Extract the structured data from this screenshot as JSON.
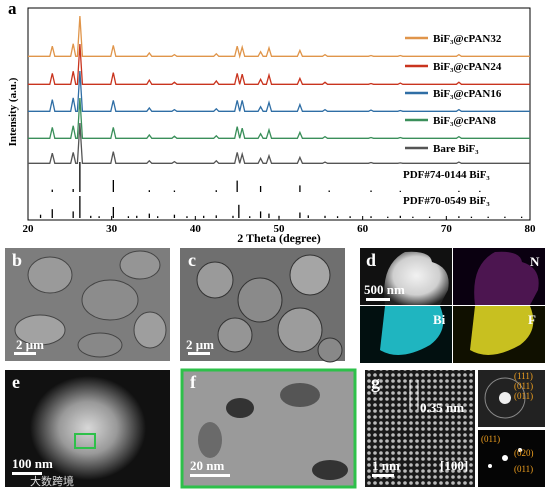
{
  "chart_data": {
    "type": "line",
    "panel_label": "a",
    "xlabel": "2 Theta (degree)",
    "ylabel": "Intensity (a.u.)",
    "xlim": [
      20,
      80
    ],
    "xticks": [
      20,
      30,
      40,
      50,
      60,
      70,
      80
    ],
    "x": [
      20,
      22.6,
      22.9,
      23.2,
      25.1,
      25.4,
      25.7,
      25.9,
      26.2,
      26.5,
      29.9,
      30.2,
      30.5,
      34.2,
      34.5,
      34.8,
      37.2,
      37.5,
      37.8,
      42.2,
      42.5,
      42.8,
      44.7,
      45,
      45.3,
      45.3,
      45.6,
      45.9,
      47.5,
      47.8,
      48.1,
      48.5,
      48.8,
      49.1,
      52.2,
      52.5,
      52.8,
      55.2,
      55.5,
      55.8,
      60.7,
      61,
      61.3,
      64.2,
      64.5,
      64.8,
      71.2,
      71.5,
      71.8,
      80
    ],
    "series": [
      {
        "name": "BiF₃@cPAN32",
        "color": "#e0954a",
        "values": [
          4,
          4,
          28,
          4,
          4,
          34,
          4,
          4,
          100,
          4,
          4,
          30,
          4,
          4,
          12,
          4,
          4,
          8,
          4,
          4,
          10,
          4,
          4,
          28,
          4,
          4,
          26,
          4,
          4,
          15,
          4,
          4,
          24,
          4,
          4,
          18,
          4,
          4,
          8,
          4,
          4,
          6,
          4,
          4,
          6,
          4,
          4,
          8,
          4,
          4
        ]
      },
      {
        "name": "BiF₃@cPAN24",
        "color": "#c9341e",
        "values": [
          4,
          4,
          30,
          4,
          4,
          35,
          4,
          4,
          100,
          4,
          4,
          32,
          4,
          4,
          14,
          4,
          4,
          9,
          4,
          4,
          12,
          4,
          4,
          30,
          4,
          4,
          28,
          4,
          4,
          16,
          4,
          4,
          26,
          4,
          4,
          18,
          4,
          4,
          9,
          4,
          4,
          6,
          4,
          4,
          7,
          4,
          4,
          9,
          4,
          4
        ]
      },
      {
        "name": "BiF₃@cPAN16",
        "color": "#2f6ea5",
        "values": [
          4,
          4,
          32,
          4,
          4,
          36,
          4,
          4,
          100,
          4,
          4,
          30,
          4,
          4,
          12,
          4,
          4,
          8,
          4,
          4,
          10,
          4,
          4,
          30,
          4,
          4,
          30,
          4,
          4,
          15,
          4,
          4,
          25,
          4,
          4,
          20,
          4,
          4,
          8,
          4,
          4,
          7,
          4,
          4,
          6,
          4,
          4,
          8,
          4,
          4
        ]
      },
      {
        "name": "BiF₃@cPAN8",
        "color": "#3a8f5a",
        "values": [
          4,
          4,
          30,
          4,
          4,
          34,
          4,
          4,
          100,
          4,
          4,
          30,
          4,
          4,
          12,
          4,
          4,
          9,
          4,
          4,
          10,
          4,
          4,
          32,
          4,
          4,
          28,
          4,
          4,
          15,
          4,
          4,
          24,
          4,
          4,
          18,
          4,
          4,
          8,
          4,
          4,
          6,
          4,
          4,
          6,
          4,
          4,
          8,
          4,
          4
        ]
      },
      {
        "name": "Bare BiF₃",
        "color": "#555555",
        "values": [
          4,
          4,
          28,
          4,
          4,
          30,
          4,
          4,
          100,
          4,
          4,
          32,
          4,
          4,
          10,
          4,
          4,
          8,
          4,
          4,
          10,
          4,
          4,
          30,
          4,
          4,
          26,
          4,
          4,
          16,
          4,
          4,
          22,
          4,
          4,
          18,
          4,
          4,
          7,
          4,
          4,
          6,
          4,
          4,
          5,
          4,
          4,
          7,
          4,
          4
        ]
      }
    ],
    "reference_patterns": [
      {
        "name": "PDF#74-0144 BiF₃",
        "x": [
          22.9,
          25.4,
          26.2,
          30.2,
          34.5,
          37.5,
          42.5,
          45,
          47.8,
          52.5,
          56,
          61,
          64.5,
          71.5,
          74
        ],
        "values": [
          8,
          10,
          100,
          40,
          6,
          5,
          6,
          38,
          20,
          22,
          5,
          5,
          4,
          4,
          4
        ]
      },
      {
        "name": "PDF#70-0549 BiF₃",
        "x": [
          21.5,
          22.9,
          25.4,
          26.2,
          27.5,
          28.5,
          30.2,
          32,
          33,
          34.5,
          35.5,
          37.5,
          39,
          41,
          42.5,
          44.5,
          45.2,
          46.5,
          47.8,
          48.8,
          50,
          52.5,
          53.5,
          55.5,
          57,
          58.5,
          61,
          63,
          64.5,
          66,
          68,
          71.5,
          73,
          75,
          77,
          79
        ],
        "values": [
          15,
          40,
          30,
          100,
          10,
          8,
          50,
          8,
          10,
          20,
          8,
          15,
          8,
          10,
          12,
          10,
          60,
          8,
          30,
          20,
          10,
          25,
          12,
          10,
          8,
          8,
          8,
          6,
          10,
          6,
          6,
          8,
          6,
          6,
          6,
          6
        ]
      }
    ]
  },
  "panels": {
    "b": {
      "label": "b",
      "scale_bar": "2 μm"
    },
    "c": {
      "label": "c",
      "scale_bar": "2 μm"
    },
    "d": {
      "label": "d",
      "scale_bar": "500 nm",
      "elements": [
        "N",
        "Bi",
        "F"
      ]
    },
    "e": {
      "label": "e",
      "scale_bar": "100 nm"
    },
    "f": {
      "label": "f",
      "scale_bar": "20 nm"
    },
    "g": {
      "label": "g",
      "scale_bar": "1 nm",
      "d_spacing": "0.35 nm",
      "zone_axis": "[100]",
      "saed_labels": [
        "(111)",
        "(011)",
        "(011)"
      ],
      "fft_labels": [
        "(011)",
        "(020)",
        "(011)"
      ]
    }
  },
  "watermark": "大数跨境"
}
